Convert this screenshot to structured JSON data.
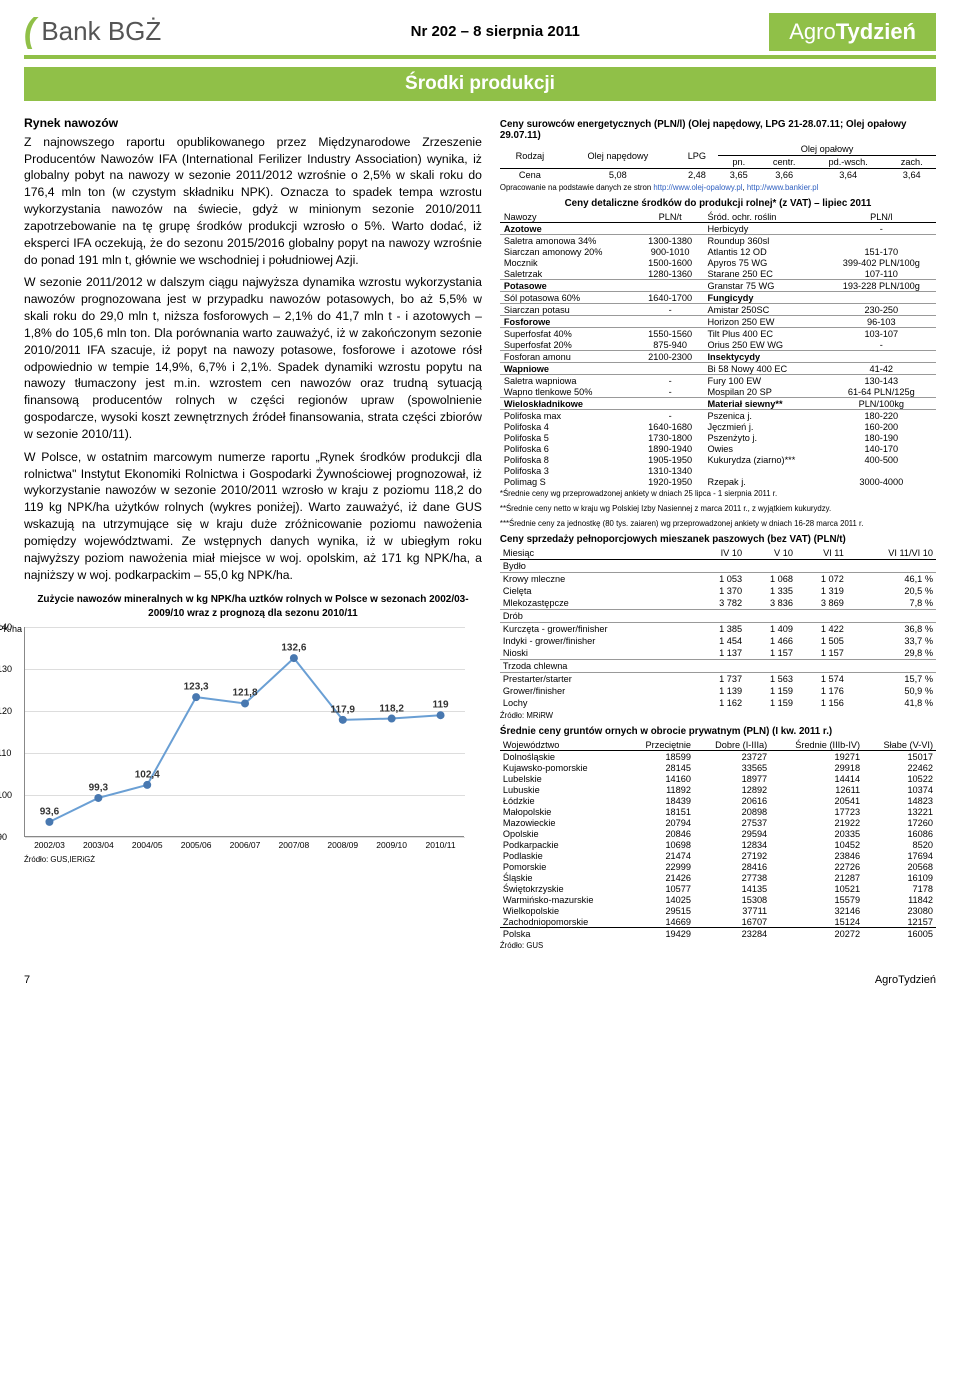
{
  "header": {
    "logo_name": "Bank BGŻ",
    "issue": "Nr 202 – 8 sierpnia 2011",
    "brand_light": "Agro",
    "brand_bold": "Tydzień"
  },
  "section_title": "Środki produkcji",
  "article": {
    "heading": "Rynek nawozów",
    "p1": "Z najnowszego raportu opublikowanego przez Międzynarodowe Zrzeszenie Producentów Nawozów IFA (International Ferilizer Industry Association) wynika, iż globalny pobyt na nawozy w sezonie 2011/2012 wzrośnie o 2,5% w skali roku do 176,4 mln ton (w czystym składniku NPK). Oznacza to spadek tempa wzrostu wykorzystania nawozów na świecie, gdyż w minionym sezonie 2010/2011 zapotrzebowanie na tę grupę środków produkcji wzrosło o 5%. Warto dodać, iż eksperci IFA oczekują, że do sezonu 2015/2016 globalny popyt na nawozy wzrośnie do ponad 191 mln t, głównie we wschodniej i południowej Azji.",
    "p2": "W sezonie 2011/2012 w dalszym ciągu najwyższa dynamika wzrostu wykorzystania nawozów prognozowana jest w przypadku nawozów potasowych, bo aż 5,5% w skali roku do 29,0 mln t, niższa fosforowych – 2,1% do 41,7 mln t - i azotowych – 1,8% do 105,6 mln ton. Dla porównania warto zauważyć, iż w zakończonym sezonie 2010/2011 IFA szacuje, iż popyt na nawozy potasowe, fosforowe i azotowe rósł odpowiednio w tempie 14,9%, 6,7% i 2,1%. Spadek dynamiki wzrostu popytu na nawozy tłumaczony jest m.in. wzrostem cen nawozów oraz trudną sytuacją finansową producentów rolnych w części regionów upraw (spowolnienie gospodarcze, wysoki koszt zewnętrznych źródeł finansowania, strata części zbiorów w sezonie 2010/11).",
    "p3": "W Polsce, w ostatnim marcowym numerze raportu „Rynek środków produkcji dla rolnictwa\" Instytut Ekonomiki Rolnictwa i Gospodarki Żywnościowej prognozował, iż wykorzystanie nawozów w sezonie 2010/2011 wzrosło w kraju z poziomu 118,2 do 119 kg NPK/ha użytków rolnych (wykres poniżej). Warto zauważyć, iż dane GUS wskazują na utrzymujące się w kraju duże zróżnicowanie poziomu nawożenia pomiędzy województwami. Ze wstępnych danych wynika, iż w ubiegłym roku najwyższy poziom nawożenia miał miejsce w woj. opolskim, aż 171 kg NPK/ha, a najniższy w woj. podkarpackim – 55,0 kg NPK/ha."
  },
  "chart": {
    "caption": "Zużycie nawozów mineralnych w kg NPK/ha uztków rolnych w Polsce w sezonach 2002/03-2009/10 wraz z prognozą dla sezonu 2010/11",
    "ylabel": "kg NPK/ha",
    "ymin": 90,
    "ymax": 140,
    "ystep": 10,
    "categories": [
      "2002/03",
      "2003/04",
      "2004/05",
      "2005/06",
      "2006/07",
      "2007/08",
      "2008/09",
      "2009/10",
      "2010/11"
    ],
    "values": [
      93.6,
      99.3,
      102.4,
      123.3,
      121.8,
      132.6,
      117.9,
      118.2,
      119
    ],
    "line_color": "#6a9fd4",
    "marker_color": "#4878b0",
    "grid_color": "#dddddd",
    "source": "Źródło: GUS,IERiGŻ"
  },
  "energy": {
    "title": "Ceny surowców energetycznych (PLN/l) (Olej napędowy, LPG 21-28.07.11; Olej opałowy 29.07.11)",
    "head_rodzaj": "Rodzaj",
    "head_on": "Olej napędowy",
    "head_lpg": "LPG",
    "head_oo": "Olej opałowy",
    "sub_pn": "pn.",
    "sub_centr": "centr.",
    "sub_pdw": "pd.-wsch.",
    "sub_zach": "zach.",
    "row_label": "Cena",
    "vals": [
      "5,08",
      "2,48",
      "3,65",
      "3,66",
      "3,64",
      "3,64"
    ],
    "src_pre": "Opracowanie na podstawie danych ze stron ",
    "src_l1": "http://www.olej-opalowy.pl",
    "src_mid": ", ",
    "src_l2": "http://www.bankier.pl"
  },
  "fert": {
    "title": "Ceny detaliczne środków do produkcji rolnej* (z VAT) – lipiec 2011",
    "h_naw": "Nawozy",
    "h_pln": "PLN/t",
    "h_sor": "Śród. ochr. roślin",
    "h_plnl": "PLN/l",
    "rows": [
      {
        "cat": true,
        "l": "Azotowe",
        "lv": "",
        "r": "Herbicydy",
        "rv": "-"
      },
      {
        "l": "Saletra amonowa 34%",
        "lv": "1300-1380",
        "r": "Roundup 360sl",
        "rv": ""
      },
      {
        "l": "Siarczan amonowy 20%",
        "lv": "900-1010",
        "r": "Atlantis 12 OD",
        "rv": "151-170"
      },
      {
        "l": "Mocznik",
        "lv": "1500-1600",
        "r": "Apyros 75 WG",
        "rv": "399-402 PLN/100g"
      },
      {
        "l": "Saletrzak",
        "lv": "1280-1360",
        "r": "Starane 250 EC",
        "rv": "107-110"
      },
      {
        "cat": true,
        "l": "Potasowe",
        "lv": "",
        "r": "Granstar 75 WG",
        "rv": "193-228 PLN/100g"
      },
      {
        "l": "Sól potasowa 60%",
        "lv": "1640-1700",
        "r": "Fungicydy",
        "rv": "",
        "rcat": true
      },
      {
        "l": "Siarczan potasu",
        "lv": "-",
        "r": "Amistar 250SC",
        "rv": "230-250"
      },
      {
        "cat": true,
        "l": "Fosforowe",
        "lv": "",
        "r": "Horizon 250 EW",
        "rv": "96-103"
      },
      {
        "l": "Superfosfat 40%",
        "lv": "1550-1560",
        "r": "Tilt Plus 400 EC",
        "rv": "103-107"
      },
      {
        "l": "Superfosfat 20%",
        "lv": "875-940",
        "r": "Orius 250 EW WG",
        "rv": "-"
      },
      {
        "l": "Fosforan amonu",
        "lv": "2100-2300",
        "r": "Insektycydy",
        "rv": "",
        "rcat": true
      },
      {
        "cat": true,
        "l": "Wapniowe",
        "lv": "",
        "r": "Bi 58 Nowy 400 EC",
        "rv": "41-42"
      },
      {
        "l": "Saletra wapniowa",
        "lv": "-",
        "r": "Fury 100 EW",
        "rv": "130-143"
      },
      {
        "l": "Wapno tlenkowe 50%",
        "lv": "-",
        "r": "Mospilan 20 SP",
        "rv": "61-64 PLN/125g"
      },
      {
        "cat": true,
        "l": "Wieloskładnikowe",
        "lv": "",
        "r": "Materiał siewny**",
        "rv": "PLN/100kg",
        "rcat": true
      },
      {
        "l": "Polifoska max",
        "lv": "-",
        "r": "Pszenica j.",
        "rv": "180-220"
      },
      {
        "l": "Polifoska 4",
        "lv": "1640-1680",
        "r": "Jęczmień j.",
        "rv": "160-200"
      },
      {
        "l": "Polifoska 5",
        "lv": "1730-1800",
        "r": "Pszenżyto j.",
        "rv": "180-190"
      },
      {
        "l": "Polifoska 6",
        "lv": "1890-1940",
        "r": "Owies",
        "rv": "140-170"
      },
      {
        "l": "Polifoska 8",
        "lv": "1905-1950",
        "r": "Kukurydza (ziarno)***",
        "rv": "400-500"
      },
      {
        "l": "Polifoska 3",
        "lv": "1310-1340",
        "r": "",
        "rv": ""
      },
      {
        "l": "Polimag S",
        "lv": "1920-1950",
        "r": "Rzepak j.",
        "rv": "3000-4000"
      }
    ],
    "fn1": "*Średnie ceny wg przeprowadzonej ankiety w dniach 25 lipca - 1 sierpnia 2011 r.",
    "fn2": "**Średnie ceny netto w kraju wg Polskiej Izby Nasiennej z marca 2011 r., z wyjątkiem kukurydzy.",
    "fn3": "***Średnie ceny za jednostkę (80 tys. zaiaren) wg przeprowadzonej ankiety w dniach 16-28 marca 2011 r."
  },
  "feed": {
    "title": "Ceny sprzedaży pełnoporcjowych mieszanek paszowych (bez VAT) (PLN/t)",
    "h": [
      "Miesiąc",
      "IV 10",
      "V 10",
      "VI 11",
      "VI 11/VI 10"
    ],
    "groups": [
      {
        "name": "Bydło",
        "rows": [
          [
            "Krowy mleczne",
            "1 053",
            "1 068",
            "1 072",
            "46,1 %"
          ],
          [
            "Cielęta",
            "1 370",
            "1 335",
            "1 319",
            "20,5 %"
          ],
          [
            "Mlekozastępcze",
            "3 782",
            "3 836",
            "3 869",
            "7,8 %"
          ]
        ]
      },
      {
        "name": "Drób",
        "rows": [
          [
            "Kurczęta - grower/finisher",
            "1 385",
            "1 409",
            "1 422",
            "36,8 %"
          ],
          [
            "Indyki - grower/finisher",
            "1 454",
            "1 466",
            "1 505",
            "33,7 %"
          ],
          [
            "Nioski",
            "1 137",
            "1 157",
            "1 157",
            "29,8 %"
          ]
        ]
      },
      {
        "name": "Trzoda chlewna",
        "rows": [
          [
            "Prestarter/starter",
            "1 737",
            "1 563",
            "1 574",
            "15,7 %"
          ],
          [
            "Grower/finisher",
            "1 139",
            "1 159",
            "1 176",
            "50,9 %"
          ],
          [
            "Lochy",
            "1 162",
            "1 159",
            "1 156",
            "41,8 %"
          ]
        ]
      }
    ],
    "source": "Źródło: MRiRW"
  },
  "land": {
    "title": "Średnie ceny gruntów ornych w obrocie prywatnym (PLN) (I kw. 2011 r.)",
    "h": [
      "Województwo",
      "Przeciętnie",
      "Dobre (I-IIIa)",
      "Średnie (IIIb-IV)",
      "Słabe (V-VI)"
    ],
    "rows": [
      [
        "Dolnośląskie",
        "18599",
        "23727",
        "19271",
        "15017"
      ],
      [
        "Kujawsko-pomorskie",
        "28145",
        "33565",
        "29918",
        "22462"
      ],
      [
        "Lubelskie",
        "14160",
        "18977",
        "14414",
        "10522"
      ],
      [
        "Lubuskie",
        "11892",
        "12892",
        "12611",
        "10374"
      ],
      [
        "Łódzkie",
        "18439",
        "20616",
        "20541",
        "14823"
      ],
      [
        "Małopolskie",
        "18151",
        "20898",
        "17723",
        "13221"
      ],
      [
        "Mazowieckie",
        "20794",
        "27537",
        "21922",
        "17260"
      ],
      [
        "Opolskie",
        "20846",
        "29594",
        "20335",
        "16086"
      ],
      [
        "Podkarpackie",
        "10698",
        "12834",
        "10452",
        "8520"
      ],
      [
        "Podlaskie",
        "21474",
        "27192",
        "23846",
        "17694"
      ],
      [
        "Pomorskie",
        "22999",
        "28416",
        "22726",
        "20568"
      ],
      [
        "Śląskie",
        "21426",
        "27738",
        "21287",
        "16109"
      ],
      [
        "Świętokrzyskie",
        "10577",
        "14135",
        "10521",
        "7178"
      ],
      [
        "Warmińsko-mazurskie",
        "14025",
        "15308",
        "15579",
        "11842"
      ],
      [
        "Wielkopolskie",
        "29515",
        "37711",
        "32146",
        "23080"
      ],
      [
        "Zachodniopomorskie",
        "14669",
        "16707",
        "15124",
        "12157"
      ]
    ],
    "total": [
      "Polska",
      "19429",
      "23284",
      "20272",
      "16005"
    ],
    "source": "Źródło: GUS"
  },
  "footer": {
    "page": "7",
    "brand": "AgroTydzień"
  }
}
